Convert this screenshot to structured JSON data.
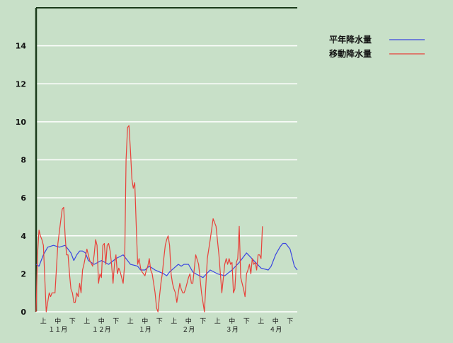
{
  "chart_data": {
    "type": "line",
    "title": "",
    "xlabel": "",
    "ylabel": "",
    "ylim": [
      0,
      16
    ],
    "y_ticks": [
      "0",
      "2",
      "4",
      "6",
      "8",
      "10",
      "12",
      "14"
    ],
    "grid": "horizontal",
    "legend_position": "top-right",
    "x_axis": {
      "decade_labels": [
        "上",
        "中",
        "下",
        "上",
        "中",
        "下",
        "上",
        "中",
        "下",
        "上",
        "中",
        "下",
        "上",
        "中",
        "下",
        "上",
        "中",
        "下"
      ],
      "month_labels": [
        "１１月",
        "１２月",
        "１月",
        "２月",
        "３月",
        "４月"
      ],
      "x_range": [
        0,
        180
      ]
    },
    "colors": {
      "background": "#c8e0c8",
      "axis": "#1a3a1a",
      "grid": "#ffffff",
      "normal": "#3b46e0",
      "moving": "#e8413a"
    },
    "series": [
      {
        "name": "平年降水量",
        "color": "#3b46e0",
        "x": [
          0,
          2,
          5,
          8,
          12,
          16,
          20,
          22,
          24,
          26,
          28,
          30,
          32,
          34,
          36,
          40,
          45,
          50,
          55,
          60,
          65,
          70,
          72,
          75,
          78,
          80,
          82,
          85,
          88,
          90,
          92,
          95,
          98,
          100,
          102,
          105,
          108,
          110,
          115,
          120,
          125,
          130,
          135,
          140,
          145,
          150,
          155,
          160,
          162,
          165,
          168,
          170,
          172,
          175,
          178,
          180
        ],
        "values": [
          2.5,
          2.4,
          3.0,
          3.4,
          3.5,
          3.4,
          3.5,
          3.3,
          3.1,
          2.7,
          3.0,
          3.2,
          3.2,
          3.1,
          2.7,
          2.5,
          2.7,
          2.5,
          2.8,
          3.0,
          2.5,
          2.4,
          2.2,
          2.2,
          2.4,
          2.3,
          2.2,
          2.1,
          2.0,
          1.9,
          2.1,
          2.3,
          2.5,
          2.4,
          2.5,
          2.5,
          2.1,
          2.0,
          1.8,
          2.2,
          2.0,
          1.9,
          2.2,
          2.6,
          3.1,
          2.7,
          2.3,
          2.2,
          2.4,
          3.0,
          3.4,
          3.6,
          3.6,
          3.3,
          2.4,
          2.2
        ]
      },
      {
        "name": "移動降水量",
        "color": "#e8413a",
        "x": [
          0,
          1,
          2,
          3,
          4,
          5,
          7,
          8,
          9,
          10,
          11,
          13,
          15,
          16,
          17,
          18,
          19,
          20,
          21,
          22,
          23,
          24,
          25,
          26,
          27,
          28,
          29,
          30,
          31,
          32,
          33,
          35,
          37,
          39,
          40,
          41,
          42,
          43,
          44,
          45,
          46,
          47,
          48,
          49,
          50,
          51,
          52,
          53,
          54,
          55,
          56,
          57,
          58,
          59,
          60,
          61,
          62,
          63,
          64,
          65,
          66,
          67,
          68,
          69,
          70,
          71,
          72,
          73,
          74,
          75,
          76,
          77,
          78,
          79,
          80,
          81,
          82,
          83,
          84,
          85,
          86,
          87,
          88,
          89,
          90,
          91,
          92,
          93,
          94,
          95,
          96,
          97,
          98,
          99,
          100,
          101,
          102,
          103,
          104,
          105,
          106,
          107,
          108,
          110,
          112,
          114,
          116,
          118,
          120,
          122,
          124,
          126,
          128,
          130,
          131,
          132,
          133,
          134,
          135,
          136,
          137,
          138,
          139,
          140,
          141,
          142,
          143,
          144,
          145,
          146,
          147,
          148,
          149,
          150,
          151,
          152,
          153,
          154,
          155,
          156
        ],
        "values": [
          0,
          3.0,
          4.3,
          4.0,
          3.8,
          3.5,
          0,
          0.5,
          1.0,
          0.8,
          1.0,
          1.0,
          3.6,
          4.2,
          4.8,
          5.4,
          5.5,
          4.0,
          3.0,
          3.0,
          2.0,
          1.2,
          1.0,
          0.5,
          0.5,
          1.0,
          0.8,
          1.5,
          1.0,
          2.2,
          2.5,
          3.3,
          2.7,
          2.4,
          3.0,
          3.8,
          3.5,
          1.5,
          2.0,
          1.8,
          3.5,
          3.6,
          2.5,
          3.5,
          3.6,
          3.2,
          2.5,
          1.5,
          2.5,
          3.0,
          2.0,
          2.3,
          2.1,
          1.8,
          1.5,
          2.5,
          8.0,
          9.7,
          9.8,
          8.5,
          7.0,
          6.5,
          6.8,
          4.5,
          2.5,
          2.8,
          2.3,
          2.1,
          2.0,
          1.9,
          2.2,
          2.4,
          2.8,
          2.2,
          2.0,
          1.5,
          1.0,
          0.2,
          0,
          0.8,
          1.5,
          2.0,
          2.8,
          3.5,
          3.8,
          4.0,
          3.5,
          2.0,
          1.5,
          1.2,
          1.0,
          0.5,
          1.0,
          1.5,
          1.2,
          1.0,
          1.0,
          1.2,
          1.5,
          1.8,
          2.0,
          1.5,
          1.5,
          3.0,
          2.5,
          1.0,
          0,
          2.8,
          3.8,
          4.9,
          4.5,
          3.0,
          1.0,
          2.5,
          2.8,
          2.5,
          2.8,
          2.5,
          2.6,
          1.0,
          1.2,
          2.6,
          2.8,
          4.5,
          1.8,
          1.5,
          1.2,
          0.8,
          2.0,
          2.2,
          2.5,
          2.0,
          2.8,
          2.5,
          2.6,
          2.2,
          3.0,
          3.0,
          2.8,
          4.5
        ]
      }
    ]
  }
}
